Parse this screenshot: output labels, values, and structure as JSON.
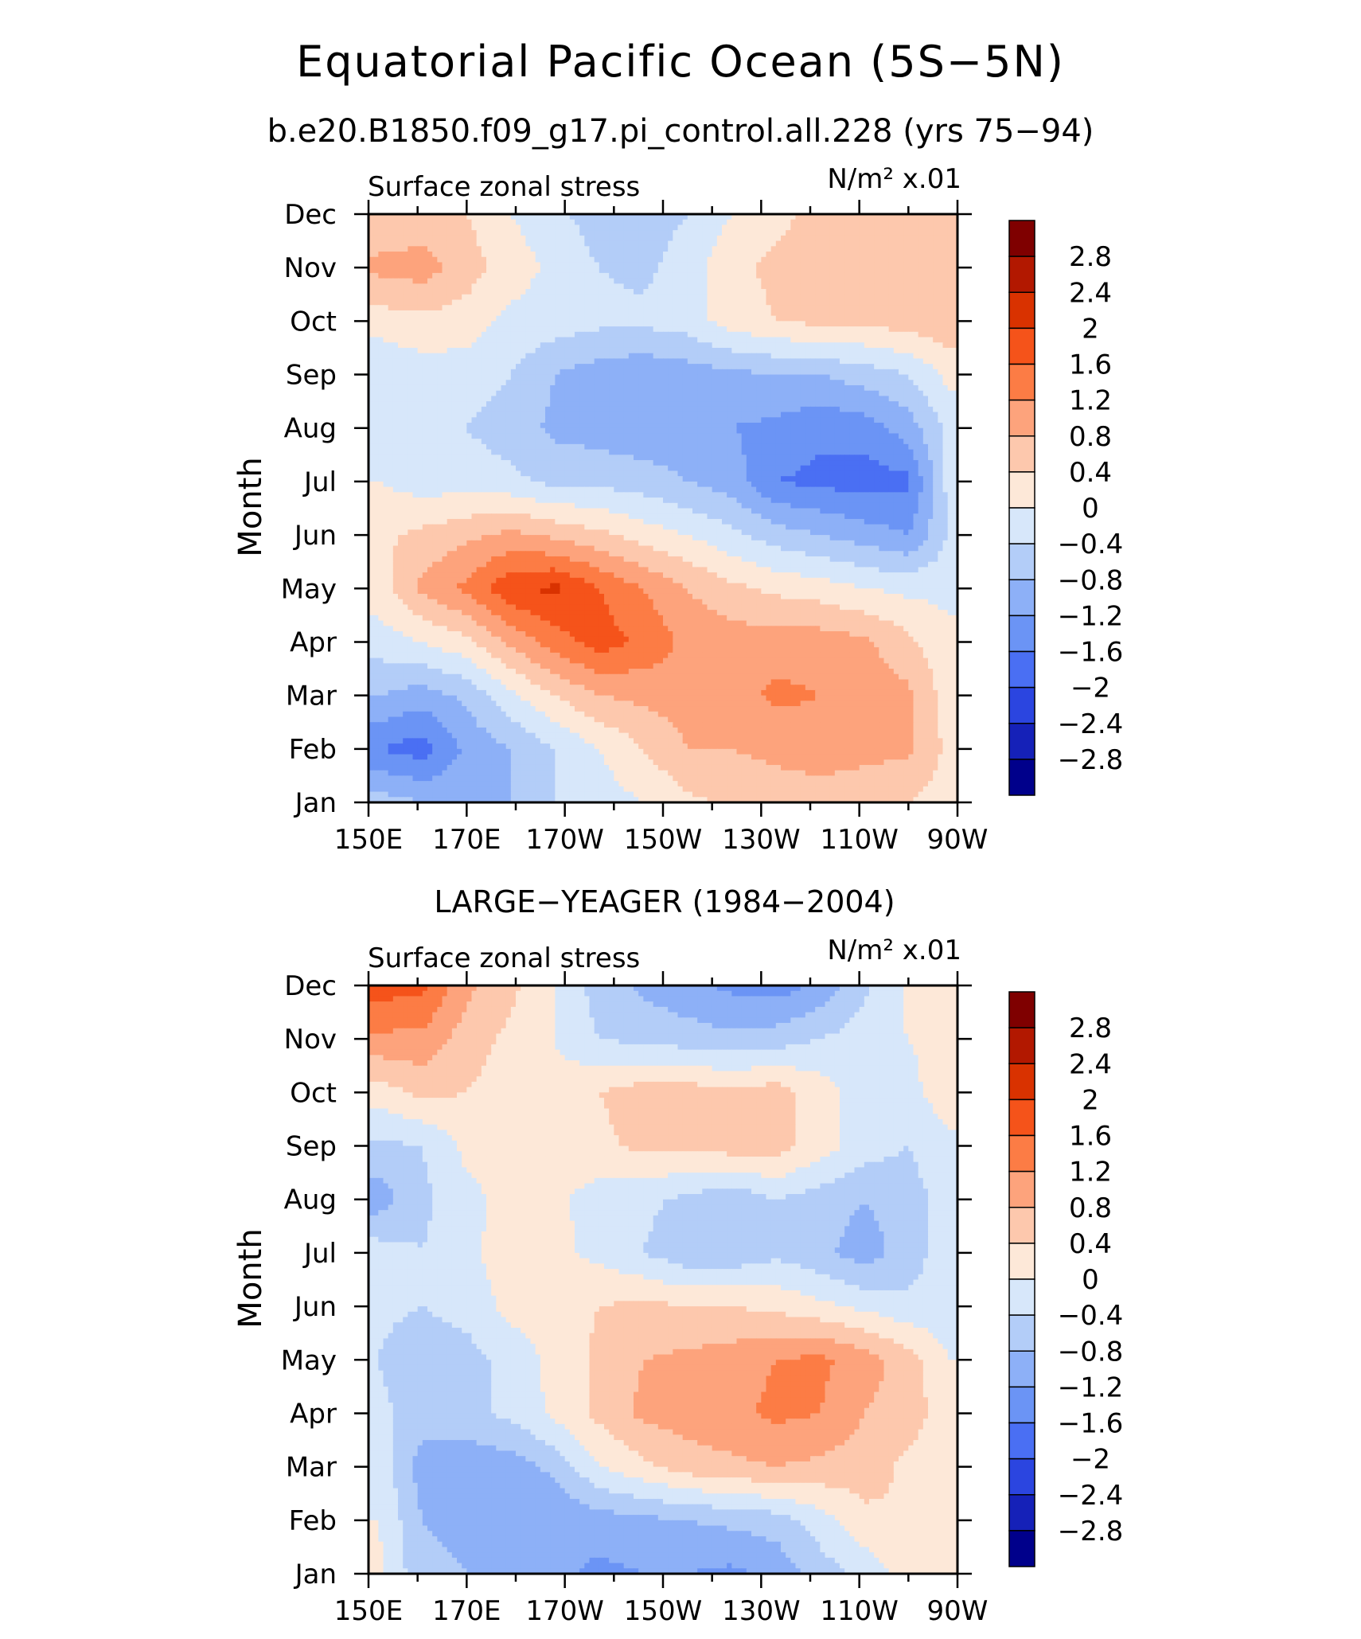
{
  "title": "Equatorial Pacific Ocean (5S−5N)",
  "subtitle": "b.e20.B1850.f09_g17.pi_control.all.228 (yrs 75−94)",
  "colorbar": {
    "levels": [
      "2.8",
      "2.4",
      "2",
      "1.6",
      "1.2",
      "0.8",
      "0.4",
      "0",
      "−0.4",
      "−0.8",
      "−1.2",
      "−1.6",
      "−2",
      "−2.4",
      "−2.8"
    ],
    "colors": [
      "#7f0000",
      "#b21800",
      "#d93200",
      "#f5531a",
      "#fc7c45",
      "#fda37c",
      "#fdc8ad",
      "#fde8d8",
      "#d7e7fa",
      "#b3cdf8",
      "#8db0f7",
      "#6b94f5",
      "#4a6ff3",
      "#2b45e0",
      "#1521b8",
      "#00008b"
    ]
  },
  "chart_data": [
    {
      "type": "heatmap",
      "title": "",
      "left_label": "Surface zonal stress",
      "units_label": "N/m² x.01",
      "xlabel": "",
      "ylabel": "Month",
      "x_ticks": [
        "150E",
        "170E",
        "170W",
        "150W",
        "130W",
        "110W",
        "90W"
      ],
      "y_ticks": [
        "Jan",
        "Feb",
        "Mar",
        "Apr",
        "May",
        "Jun",
        "Jul",
        "Aug",
        "Sep",
        "Oct",
        "Nov",
        "Dec"
      ],
      "xlim": [
        150,
        270
      ],
      "ylim": [
        1,
        12
      ],
      "x": [
        152,
        161,
        170,
        179,
        188,
        197,
        206,
        215,
        224,
        233,
        242,
        251,
        260,
        268
      ],
      "y": [
        1,
        2,
        3,
        4,
        5,
        6,
        7,
        8,
        9,
        10,
        11,
        12
      ],
      "z": [
        [
          -0.6,
          -0.8,
          -0.9,
          -0.8,
          -0.4,
          -0.2,
          0.0,
          0.3,
          0.5,
          0.6,
          0.6,
          0.6,
          0.4,
          0.2
        ],
        [
          -1.6,
          -1.8,
          -1.1,
          -0.8,
          -0.4,
          0.0,
          0.4,
          0.8,
          0.8,
          0.9,
          1.0,
          0.9,
          0.9,
          0.3
        ],
        [
          -0.8,
          -1.0,
          -0.7,
          -0.1,
          0.4,
          0.8,
          0.9,
          1.0,
          1.0,
          1.3,
          1.2,
          1.0,
          0.9,
          0.2
        ],
        [
          -0.2,
          0.0,
          0.3,
          0.9,
          1.4,
          1.8,
          1.5,
          1.1,
          1.0,
          1.0,
          1.0,
          0.9,
          0.5,
          0.1
        ],
        [
          0.2,
          0.9,
          1.3,
          1.9,
          2.1,
          1.6,
          1.2,
          0.8,
          0.5,
          0.3,
          0.2,
          0.0,
          -0.1,
          -0.1
        ],
        [
          0.3,
          0.5,
          0.7,
          0.9,
          0.7,
          0.5,
          0.2,
          0.0,
          -0.3,
          -0.6,
          -0.8,
          -1.0,
          -1.2,
          -0.4
        ],
        [
          0.0,
          -0.2,
          -0.2,
          -0.3,
          -0.5,
          -0.5,
          -0.6,
          -0.8,
          -1.0,
          -1.6,
          -1.7,
          -1.8,
          -1.7,
          -0.3
        ],
        [
          -0.3,
          -0.2,
          -0.4,
          -0.6,
          -0.9,
          -1.0,
          -1.1,
          -1.1,
          -1.2,
          -1.3,
          -1.5,
          -1.4,
          -1.0,
          -0.3
        ],
        [
          -0.4,
          -0.2,
          -0.2,
          -0.4,
          -0.8,
          -1.0,
          -1.1,
          -1.0,
          -0.9,
          -0.8,
          -0.8,
          -0.6,
          -0.4,
          0.1
        ],
        [
          0.2,
          0.3,
          0.2,
          -0.1,
          -0.2,
          -0.3,
          -0.3,
          -0.2,
          0.2,
          0.4,
          0.5,
          0.5,
          0.6,
          0.7
        ],
        [
          0.9,
          1.0,
          0.6,
          0.2,
          -0.1,
          -0.4,
          -0.5,
          -0.2,
          0.3,
          0.5,
          0.6,
          0.7,
          0.7,
          0.7
        ],
        [
          0.5,
          0.5,
          0.4,
          0.0,
          -0.3,
          -0.6,
          -0.6,
          -0.4,
          0.0,
          0.3,
          0.5,
          0.6,
          0.6,
          0.6
        ]
      ]
    },
    {
      "type": "heatmap",
      "title": "LARGE−YEAGER (1984−2004)",
      "left_label": "Surface zonal stress",
      "units_label": "N/m² x.01",
      "xlabel": "",
      "ylabel": "Month",
      "x_ticks": [
        "150E",
        "170E",
        "170W",
        "150W",
        "130W",
        "110W",
        "90W"
      ],
      "y_ticks": [
        "Jan",
        "Feb",
        "Mar",
        "Apr",
        "May",
        "Jun",
        "Jul",
        "Aug",
        "Sep",
        "Oct",
        "Nov",
        "Dec"
      ],
      "xlim": [
        150,
        270
      ],
      "ylim": [
        1,
        12
      ],
      "x": [
        152,
        161,
        170,
        179,
        188,
        197,
        206,
        215,
        224,
        233,
        242,
        251,
        260,
        268
      ],
      "y": [
        1,
        2,
        3,
        4,
        5,
        6,
        7,
        8,
        9,
        10,
        11,
        12
      ],
      "z": [
        [
          0.1,
          -0.7,
          -0.8,
          -0.9,
          -1.1,
          -1.3,
          -1.2,
          -1.2,
          -1.3,
          -1.1,
          -0.6,
          -0.3,
          0.2,
          0.3
        ],
        [
          0.0,
          -0.8,
          -0.9,
          -1.0,
          -1.1,
          -1.0,
          -0.9,
          -0.8,
          -0.7,
          -0.6,
          -0.2,
          0.3,
          0.4,
          0.3
        ],
        [
          -0.1,
          -1.0,
          -1.1,
          -1.0,
          -0.7,
          0.0,
          0.3,
          0.6,
          0.7,
          0.8,
          0.7,
          0.6,
          0.3,
          0.1
        ],
        [
          -0.3,
          -0.6,
          -0.5,
          -0.3,
          0.1,
          0.5,
          0.9,
          1.0,
          1.1,
          1.3,
          1.2,
          0.8,
          0.6,
          0.2
        ],
        [
          -0.4,
          -0.7,
          -0.6,
          -0.2,
          0.1,
          0.5,
          0.8,
          0.9,
          1.0,
          1.2,
          1.3,
          1.0,
          0.6,
          0.0
        ],
        [
          -0.3,
          -0.4,
          -0.2,
          0.1,
          0.2,
          0.4,
          0.5,
          0.4,
          0.4,
          0.3,
          0.1,
          -0.1,
          -0.3,
          -0.2
        ],
        [
          -0.2,
          -0.4,
          -0.1,
          0.2,
          0.1,
          -0.1,
          -0.4,
          -0.7,
          -0.7,
          -0.5,
          -0.7,
          -1.0,
          -0.6,
          -0.2
        ],
        [
          -1.0,
          -0.5,
          -0.1,
          0.1,
          0.1,
          -0.2,
          -0.3,
          -0.5,
          -0.7,
          -0.4,
          -0.6,
          -0.8,
          -0.6,
          -0.2
        ],
        [
          -0.5,
          -0.4,
          0.1,
          0.2,
          0.2,
          0.3,
          0.5,
          0.5,
          0.6,
          0.6,
          0.2,
          -0.2,
          -0.4,
          -0.1
        ],
        [
          0.2,
          0.5,
          0.4,
          0.2,
          0.1,
          0.4,
          0.6,
          0.6,
          0.5,
          0.6,
          0.2,
          -0.2,
          -0.1,
          0.2
        ],
        [
          1.1,
          1.1,
          0.6,
          0.3,
          0.0,
          -0.4,
          -0.5,
          -0.6,
          -0.7,
          -0.6,
          -0.4,
          -0.2,
          0.0,
          0.1
        ],
        [
          1.8,
          1.7,
          0.9,
          0.5,
          0.0,
          -0.6,
          -0.9,
          -1.1,
          -1.3,
          -1.4,
          -1.1,
          -0.5,
          0.1,
          0.2
        ]
      ]
    }
  ]
}
